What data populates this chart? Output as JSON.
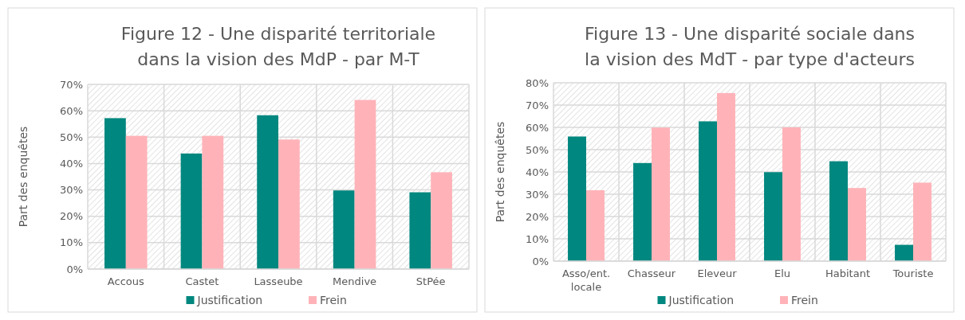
{
  "chart_data": [
    {
      "type": "bar",
      "title": "Figure 12 - Une disparité territoriale dans la vision des MdP - par M-T",
      "ylabel": "Part des enquêtes",
      "categories": [
        "Accous",
        "Castet",
        "Lasseube",
        "Mendive",
        "StPée"
      ],
      "series": [
        {
          "name": "Justification",
          "color": "#00877f",
          "values": [
            57.2,
            43.8,
            58.3,
            29.8,
            29.1
          ]
        },
        {
          "name": "Frein",
          "color": "#ffb3b8",
          "values": [
            50.5,
            50.5,
            49.1,
            64.1,
            36.7
          ]
        }
      ],
      "ylim": [
        0,
        70
      ],
      "yticks": [
        {
          "value": 0,
          "label": "0%"
        },
        {
          "value": 10,
          "label": "10%"
        },
        {
          "value": 20,
          "label": "20%"
        },
        {
          "value": 30,
          "label": "30%"
        },
        {
          "value": 40,
          "label": "40%"
        },
        {
          "value": 50,
          "label": "50%"
        },
        {
          "value": 60,
          "label": "60%"
        },
        {
          "value": 70,
          "label": "70%"
        }
      ],
      "grid": true,
      "legend": "bottom"
    },
    {
      "type": "bar",
      "title": "Figure 13 - Une disparité sociale dans la vision des MdT -  par type d'acteurs",
      "ylabel": "Part des enquêtes",
      "categories": [
        "Asso/ent. locale",
        "Chasseur",
        "Eleveur",
        "Elu",
        "Habitant",
        "Touriste"
      ],
      "series": [
        {
          "name": "Justification",
          "color": "#00877f",
          "values": [
            55.9,
            44.0,
            62.7,
            39.9,
            44.8,
            7.3
          ]
        },
        {
          "name": "Frein",
          "color": "#ffb3b8",
          "values": [
            31.8,
            59.9,
            75.4,
            60.0,
            32.8,
            35.2
          ]
        }
      ],
      "ylim": [
        0,
        80
      ],
      "yticks": [
        {
          "value": 0,
          "label": "0%"
        },
        {
          "value": 10,
          "label": "10%"
        },
        {
          "value": 20,
          "label": "20%"
        },
        {
          "value": 30,
          "label": "30%"
        },
        {
          "value": 40,
          "label": "40%"
        },
        {
          "value": 50,
          "label": "50%"
        },
        {
          "value": 60,
          "label": "60%"
        },
        {
          "value": 70,
          "label": "70%"
        },
        {
          "value": 80,
          "label": "80%"
        }
      ],
      "grid": true,
      "legend": "bottom"
    }
  ]
}
